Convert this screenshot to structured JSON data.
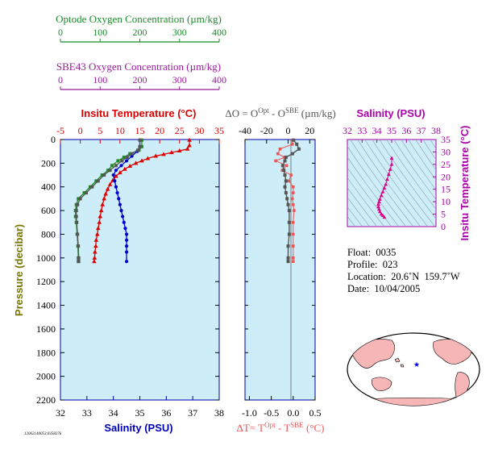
{
  "chart_data": [
    {
      "type": "line",
      "panel": "main-profile",
      "ylabel": "Pressure (decibar)",
      "yticks": [
        0,
        200,
        400,
        600,
        800,
        1000,
        1200,
        1400,
        1600,
        1800,
        2000,
        2200
      ],
      "ylim": [
        2200,
        0
      ],
      "axes": {
        "optode_oxygen": {
          "label": "Optode Oxygen Concentration (µm/kg)",
          "ticks": [
            0,
            100,
            200,
            300,
            400
          ],
          "xlim": [
            0,
            400
          ],
          "color": "#1a8a2a"
        },
        "sbe43_oxygen": {
          "label": "SBE43 Oxygen Concentration (µm/kg)",
          "ticks": [
            0,
            100,
            200,
            300,
            400
          ],
          "xlim": [
            0,
            400
          ],
          "color": "#9b1a9b"
        },
        "temperature": {
          "label": "Insitu Temperature (°C)",
          "ticks": [
            -5,
            0,
            5,
            10,
            15,
            20,
            25,
            30,
            35
          ],
          "xlim": [
            -5,
            35
          ],
          "color": "#dd0000"
        },
        "salinity": {
          "label": "Salinity (PSU)",
          "ticks": [
            32,
            33,
            34,
            35,
            36,
            37,
            38
          ],
          "xlim": [
            32,
            38
          ],
          "color": "#0000bb"
        }
      },
      "series": [
        {
          "key": "temperature",
          "color": "#dd0000",
          "marker": "triangle",
          "x": [
            27.5,
            27.5,
            27.0,
            25.0,
            23.0,
            21.0,
            19.0,
            17.0,
            15.5,
            14.0,
            12.5,
            11.2,
            10.0,
            9.0,
            8.2,
            7.5,
            6.9,
            6.4,
            6.0,
            5.6,
            5.3,
            5.0,
            4.8,
            4.5,
            4.3,
            4.0,
            3.9,
            3.7,
            3.6,
            3.5
          ],
          "y": [
            5,
            50,
            80,
            95,
            110,
            125,
            140,
            160,
            180,
            200,
            225,
            250,
            280,
            310,
            345,
            380,
            420,
            460,
            500,
            550,
            600,
            650,
            700,
            750,
            800,
            850,
            900,
            950,
            1000,
            1030
          ]
        },
        {
          "key": "salinity",
          "color": "#0000cc",
          "marker": "circle",
          "x": [
            35.0,
            35.0,
            34.9,
            34.7,
            34.5,
            34.3,
            34.1,
            34.0,
            34.05,
            34.1,
            34.15,
            34.2,
            34.25,
            34.3,
            34.35,
            34.4,
            34.45,
            34.5,
            34.5,
            34.5,
            34.5,
            34.5
          ],
          "y": [
            5,
            60,
            100,
            140,
            180,
            220,
            260,
            300,
            350,
            400,
            450,
            500,
            550,
            600,
            650,
            700,
            750,
            800,
            850,
            900,
            950,
            1030
          ]
        },
        {
          "key": "optode_oxygen",
          "color": "#228822",
          "marker": "square",
          "x": [
            205,
            205,
            198,
            175,
            160,
            145,
            130,
            120,
            105,
            90,
            75,
            60,
            45,
            40,
            38,
            38,
            40,
            42,
            44,
            45,
            45
          ],
          "y": [
            5,
            60,
            90,
            120,
            150,
            180,
            220,
            260,
            300,
            350,
            400,
            450,
            500,
            550,
            600,
            650,
            700,
            800,
            900,
            1000,
            1030
          ]
        },
        {
          "key": "sbe43_oxygen",
          "color": "#555555",
          "marker": "square",
          "x": [
            200,
            200,
            195,
            180,
            168,
            155,
            140,
            125,
            110,
            95,
            80,
            65,
            50,
            43,
            40,
            40,
            41,
            43,
            45,
            46,
            46
          ],
          "y": [
            5,
            60,
            90,
            120,
            150,
            180,
            220,
            260,
            300,
            350,
            400,
            450,
            500,
            550,
            600,
            650,
            700,
            800,
            900,
            1000,
            1030
          ]
        }
      ]
    },
    {
      "type": "line",
      "panel": "difference-profile",
      "top_axis_label": "ΔO = O^Opt - O^SBE (µm/kg)",
      "top_ticks": [
        -40,
        -20,
        0,
        20
      ],
      "xlim_top": [
        -40,
        25
      ],
      "bottom_axis_label": "ΔT= T^Opt - T^SBE (°C)",
      "bottom_ticks": [
        -1.0,
        -0.5,
        0.0,
        0.5
      ],
      "xlim_bottom": [
        -1.1,
        0.5
      ],
      "series": [
        {
          "name": "ΔO",
          "color": "#555555",
          "x": [
            5,
            8,
            10,
            4,
            -2,
            -3,
            -5,
            -4,
            -3,
            -2,
            -3,
            -2,
            -1,
            0,
            1,
            1,
            1,
            0,
            0,
            0
          ],
          "y": [
            5,
            40,
            80,
            120,
            150,
            180,
            220,
            260,
            300,
            350,
            400,
            450,
            500,
            550,
            600,
            700,
            800,
            900,
            1000,
            1030
          ]
        },
        {
          "name": "ΔT",
          "color": "#ee5555",
          "x": [
            -0.02,
            -0.02,
            -0.3,
            -0.35,
            -0.2,
            -0.4,
            -0.15,
            -0.25,
            -0.05,
            -0.1,
            0.0,
            0.0,
            -0.02,
            0.0,
            0.02,
            0.0,
            0.0,
            0.0,
            0.0,
            0.0
          ],
          "y": [
            5,
            40,
            80,
            120,
            150,
            180,
            220,
            260,
            300,
            350,
            400,
            450,
            500,
            550,
            600,
            700,
            800,
            900,
            1000,
            1030
          ]
        }
      ]
    },
    {
      "type": "scatter",
      "panel": "ts-diagram",
      "title": "Salinity (PSU)",
      "xticks": [
        32,
        33,
        34,
        35,
        36,
        37,
        38
      ],
      "xlim": [
        32,
        38
      ],
      "ylabel": "Insitu Temperature (°C)",
      "yticks": [
        0,
        5,
        10,
        15,
        20,
        25,
        30,
        35
      ],
      "ylim": [
        0,
        35
      ],
      "color": "#dd0088",
      "x": [
        35.0,
        35.0,
        34.9,
        34.8,
        34.7,
        34.6,
        34.5,
        34.4,
        34.3,
        34.2,
        34.15,
        34.1,
        34.1,
        34.15,
        34.2,
        34.3,
        34.4,
        34.5
      ],
      "y": [
        27.5,
        25,
        23,
        21,
        19,
        17,
        15.5,
        14,
        12.5,
        11,
        10,
        9,
        8,
        7,
        6,
        5,
        4.5,
        3.8
      ]
    }
  ],
  "info": {
    "float": "Float:  0035",
    "profile": "Profile:  023",
    "location": "Location:  20.6˚N  159.7˚W",
    "date": "Date:  10/04/2005"
  },
  "file_code": "12062140053.0358276"
}
